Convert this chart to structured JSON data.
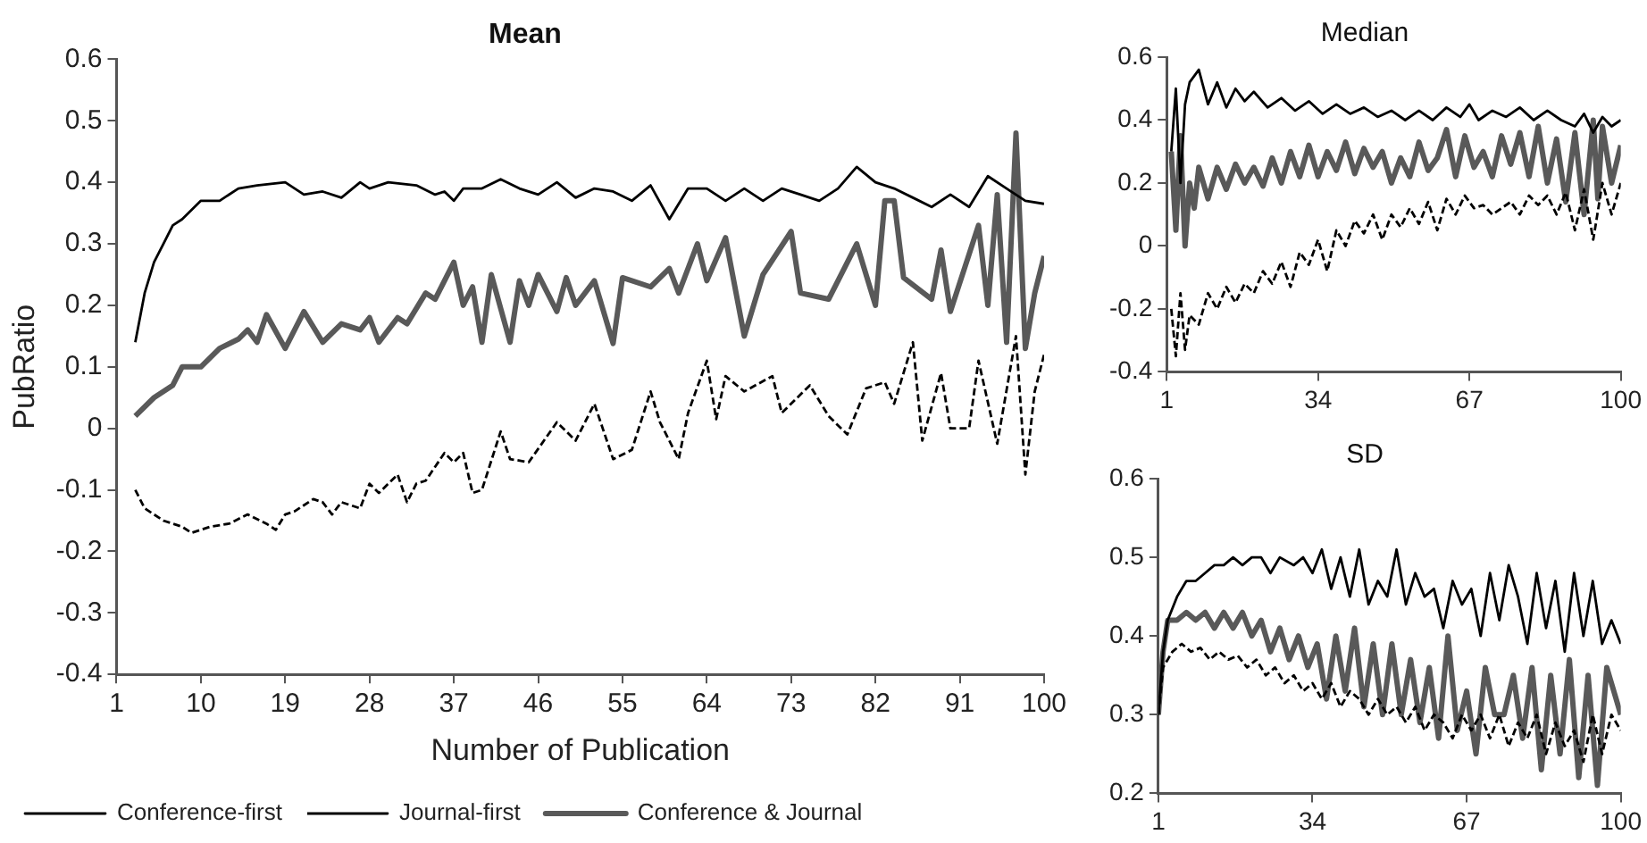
{
  "chart_data": [
    {
      "type": "line",
      "title": "Mean",
      "xlabel": "Number of Publication",
      "ylabel": "PubRatio",
      "xlim": [
        1,
        100
      ],
      "xticks": [
        1,
        10,
        19,
        28,
        37,
        46,
        55,
        64,
        73,
        82,
        91,
        100
      ],
      "ylim": [
        -0.4,
        0.6
      ],
      "yticks": [
        -0.4,
        -0.3,
        -0.2,
        -0.1,
        0,
        0.1,
        0.2,
        0.3,
        0.4,
        0.5,
        0.6
      ],
      "legend": "bottom",
      "marker": "none",
      "series": [
        {
          "name": "Conference-first",
          "color": "#000000",
          "line_style": "solid",
          "x": [
            3,
            4,
            5,
            6,
            7,
            8,
            10,
            12,
            14,
            16,
            19,
            21,
            23,
            25,
            27,
            28,
            30,
            33,
            35,
            36,
            37,
            38,
            40,
            42,
            44,
            46,
            48,
            50,
            52,
            54,
            56,
            58,
            60,
            62,
            64,
            66,
            68,
            70,
            72,
            74,
            76,
            78,
            80,
            82,
            84,
            86,
            88,
            90,
            92,
            94,
            96,
            98,
            100
          ],
          "values": [
            0.14,
            0.22,
            0.27,
            0.3,
            0.33,
            0.34,
            0.37,
            0.37,
            0.39,
            0.395,
            0.4,
            0.38,
            0.385,
            0.375,
            0.4,
            0.39,
            0.4,
            0.395,
            0.38,
            0.385,
            0.37,
            0.39,
            0.39,
            0.405,
            0.39,
            0.38,
            0.4,
            0.375,
            0.39,
            0.385,
            0.37,
            0.395,
            0.34,
            0.39,
            0.39,
            0.37,
            0.39,
            0.37,
            0.39,
            0.38,
            0.37,
            0.39,
            0.425,
            0.4,
            0.39,
            0.375,
            0.36,
            0.38,
            0.36,
            0.41,
            0.39,
            0.37,
            0.365
          ]
        },
        {
          "name": "Journal-first",
          "color": "#000000",
          "line_style": "dashed",
          "x": [
            3,
            4,
            6,
            8,
            9,
            11,
            13,
            15,
            17,
            18,
            19,
            20,
            22,
            23,
            24,
            25,
            27,
            28,
            29,
            31,
            32,
            33,
            34,
            36,
            37,
            38,
            39,
            40,
            42,
            43,
            45,
            48,
            50,
            52,
            54,
            56,
            58,
            59,
            61,
            62,
            64,
            65,
            66,
            68,
            71,
            72,
            75,
            77,
            79,
            81,
            83,
            84,
            86,
            87,
            89,
            90,
            92,
            93,
            95,
            97,
            98,
            99,
            100
          ],
          "values": [
            -0.1,
            -0.13,
            -0.15,
            -0.16,
            -0.17,
            -0.16,
            -0.155,
            -0.14,
            -0.155,
            -0.165,
            -0.14,
            -0.135,
            -0.115,
            -0.12,
            -0.14,
            -0.12,
            -0.13,
            -0.09,
            -0.105,
            -0.075,
            -0.12,
            -0.09,
            -0.085,
            -0.04,
            -0.055,
            -0.04,
            -0.105,
            -0.1,
            -0.005,
            -0.05,
            -0.055,
            0.01,
            -0.02,
            0.04,
            -0.05,
            -0.035,
            0.06,
            0.01,
            -0.05,
            0.025,
            0.11,
            0.015,
            0.085,
            0.06,
            0.085,
            0.025,
            0.07,
            0.02,
            -0.01,
            0.065,
            0.075,
            0.04,
            0.14,
            -0.02,
            0.09,
            0,
            0,
            0.11,
            -0.025,
            0.15,
            -0.075,
            0.06,
            0.12
          ]
        },
        {
          "name": "Conference & Journal",
          "color": "#595959",
          "line_style": "solid",
          "x": [
            3,
            5,
            7,
            8,
            10,
            12,
            14,
            15,
            16,
            17,
            19,
            21,
            23,
            25,
            27,
            28,
            29,
            31,
            32,
            34,
            35,
            37,
            38,
            39,
            40,
            41,
            43,
            44,
            45,
            46,
            47,
            48,
            49,
            50,
            52,
            54,
            55,
            58,
            60,
            61,
            63,
            64,
            66,
            68,
            70,
            73,
            74,
            77,
            80,
            82,
            83,
            84,
            85,
            88,
            89,
            90,
            93,
            94,
            95,
            96,
            97,
            98,
            99,
            100
          ],
          "values": [
            0.02,
            0.05,
            0.07,
            0.1,
            0.1,
            0.13,
            0.145,
            0.16,
            0.14,
            0.185,
            0.13,
            0.19,
            0.14,
            0.17,
            0.16,
            0.18,
            0.14,
            0.18,
            0.17,
            0.22,
            0.21,
            0.27,
            0.2,
            0.23,
            0.14,
            0.25,
            0.14,
            0.24,
            0.2,
            0.25,
            0.22,
            0.19,
            0.245,
            0.2,
            0.24,
            0.138,
            0.245,
            0.23,
            0.26,
            0.22,
            0.3,
            0.24,
            0.31,
            0.15,
            0.25,
            0.32,
            0.22,
            0.21,
            0.3,
            0.2,
            0.37,
            0.37,
            0.245,
            0.21,
            0.29,
            0.19,
            0.33,
            0.2,
            0.38,
            0.14,
            0.48,
            0.13,
            0.22,
            0.28
          ]
        }
      ]
    },
    {
      "type": "line",
      "title": "Median",
      "xlim": [
        1,
        100
      ],
      "xticks": [
        1,
        34,
        67,
        100
      ],
      "ylim": [
        -0.4,
        0.6
      ],
      "yticks": [
        -0.4,
        -0.2,
        0,
        0.2,
        0.4,
        0.6
      ],
      "marker": "none",
      "series": [
        {
          "color": "#000000",
          "line_style": "solid",
          "x": [
            2,
            3,
            4,
            5,
            6,
            8,
            10,
            12,
            14,
            16,
            18,
            20,
            23,
            26,
            29,
            32,
            35,
            38,
            41,
            44,
            47,
            50,
            53,
            56,
            59,
            62,
            65,
            67,
            69,
            72,
            75,
            78,
            81,
            84,
            87,
            90,
            92,
            94,
            96,
            98,
            100
          ],
          "values": [
            0.3,
            0.5,
            0.2,
            0.45,
            0.52,
            0.56,
            0.45,
            0.52,
            0.44,
            0.5,
            0.46,
            0.49,
            0.44,
            0.47,
            0.43,
            0.46,
            0.42,
            0.45,
            0.42,
            0.44,
            0.41,
            0.43,
            0.4,
            0.43,
            0.4,
            0.44,
            0.41,
            0.45,
            0.4,
            0.43,
            0.41,
            0.44,
            0.4,
            0.43,
            0.4,
            0.38,
            0.42,
            0.36,
            0.41,
            0.38,
            0.4
          ]
        },
        {
          "color": "#000000",
          "line_style": "dashed",
          "x": [
            2,
            3,
            4,
            5,
            6,
            8,
            10,
            12,
            14,
            16,
            18,
            20,
            22,
            24,
            26,
            28,
            30,
            32,
            34,
            36,
            38,
            40,
            42,
            44,
            46,
            48,
            50,
            52,
            54,
            56,
            58,
            60,
            62,
            64,
            66,
            68,
            70,
            72,
            74,
            76,
            78,
            80,
            82,
            84,
            86,
            88,
            90,
            92,
            94,
            96,
            98,
            100
          ],
          "values": [
            -0.2,
            -0.35,
            -0.15,
            -0.33,
            -0.22,
            -0.25,
            -0.15,
            -0.2,
            -0.13,
            -0.18,
            -0.12,
            -0.15,
            -0.08,
            -0.12,
            -0.05,
            -0.13,
            -0.02,
            -0.06,
            0.02,
            -0.08,
            0.05,
            0,
            0.08,
            0.04,
            0.1,
            0.02,
            0.1,
            0.06,
            0.12,
            0.07,
            0.14,
            0.05,
            0.15,
            0.1,
            0.16,
            0.12,
            0.13,
            0.1,
            0.12,
            0.14,
            0.1,
            0.16,
            0.13,
            0.16,
            0.1,
            0.17,
            0.05,
            0.18,
            0.02,
            0.2,
            0.1,
            0.2
          ]
        },
        {
          "color": "#595959",
          "line_style": "solid",
          "x": [
            2,
            3,
            4,
            5,
            6,
            7,
            8,
            10,
            12,
            14,
            16,
            18,
            20,
            22,
            24,
            26,
            28,
            30,
            32,
            34,
            36,
            38,
            40,
            42,
            44,
            46,
            48,
            50,
            52,
            54,
            56,
            58,
            60,
            62,
            64,
            66,
            68,
            70,
            72,
            74,
            76,
            78,
            80,
            82,
            84,
            86,
            88,
            90,
            92,
            94,
            95,
            96,
            98,
            100
          ],
          "values": [
            0.3,
            0.05,
            0.35,
            0,
            0.2,
            0.12,
            0.25,
            0.15,
            0.25,
            0.18,
            0.26,
            0.2,
            0.25,
            0.19,
            0.28,
            0.2,
            0.3,
            0.22,
            0.32,
            0.22,
            0.3,
            0.24,
            0.33,
            0.23,
            0.31,
            0.25,
            0.3,
            0.2,
            0.28,
            0.22,
            0.33,
            0.24,
            0.28,
            0.37,
            0.22,
            0.35,
            0.25,
            0.3,
            0.22,
            0.35,
            0.26,
            0.36,
            0.22,
            0.38,
            0.2,
            0.34,
            0.14,
            0.36,
            0.1,
            0.4,
            0.15,
            0.38,
            0.2,
            0.32
          ]
        }
      ]
    },
    {
      "type": "line",
      "title": "SD",
      "xlim": [
        1,
        100
      ],
      "xticks": [
        1,
        34,
        67,
        100
      ],
      "ylim": [
        0.2,
        0.6
      ],
      "yticks": [
        0.2,
        0.3,
        0.4,
        0.5,
        0.6
      ],
      "marker": "none",
      "series": [
        {
          "color": "#000000",
          "line_style": "solid",
          "x": [
            1,
            2,
            3,
            5,
            7,
            9,
            11,
            13,
            15,
            17,
            19,
            21,
            23,
            25,
            27,
            30,
            32,
            34,
            36,
            38,
            40,
            42,
            44,
            46,
            48,
            50,
            52,
            54,
            56,
            58,
            60,
            62,
            64,
            66,
            68,
            70,
            72,
            74,
            76,
            78,
            80,
            82,
            84,
            86,
            88,
            90,
            92,
            94,
            96,
            98,
            100
          ],
          "values": [
            0.3,
            0.38,
            0.42,
            0.45,
            0.47,
            0.47,
            0.48,
            0.49,
            0.49,
            0.5,
            0.49,
            0.5,
            0.5,
            0.48,
            0.5,
            0.49,
            0.5,
            0.48,
            0.51,
            0.46,
            0.5,
            0.45,
            0.51,
            0.44,
            0.47,
            0.45,
            0.51,
            0.44,
            0.48,
            0.45,
            0.46,
            0.41,
            0.47,
            0.44,
            0.46,
            0.4,
            0.48,
            0.42,
            0.49,
            0.45,
            0.39,
            0.48,
            0.41,
            0.47,
            0.38,
            0.48,
            0.4,
            0.47,
            0.39,
            0.42,
            0.39
          ]
        },
        {
          "color": "#000000",
          "line_style": "dashed",
          "x": [
            1,
            2,
            4,
            6,
            8,
            10,
            12,
            14,
            16,
            18,
            20,
            22,
            24,
            26,
            28,
            30,
            32,
            34,
            36,
            38,
            40,
            42,
            44,
            46,
            48,
            50,
            52,
            54,
            56,
            58,
            60,
            62,
            64,
            66,
            68,
            70,
            72,
            74,
            76,
            78,
            80,
            82,
            84,
            86,
            88,
            90,
            92,
            94,
            96,
            98,
            100
          ],
          "values": [
            0.3,
            0.36,
            0.38,
            0.39,
            0.38,
            0.385,
            0.37,
            0.38,
            0.37,
            0.375,
            0.36,
            0.37,
            0.35,
            0.36,
            0.34,
            0.35,
            0.33,
            0.34,
            0.32,
            0.34,
            0.31,
            0.33,
            0.32,
            0.3,
            0.32,
            0.3,
            0.31,
            0.29,
            0.31,
            0.28,
            0.3,
            0.29,
            0.27,
            0.3,
            0.28,
            0.3,
            0.27,
            0.3,
            0.26,
            0.29,
            0.27,
            0.3,
            0.25,
            0.29,
            0.26,
            0.28,
            0.24,
            0.3,
            0.25,
            0.3,
            0.28
          ]
        },
        {
          "color": "#595959",
          "line_style": "solid",
          "x": [
            1,
            2,
            3,
            5,
            7,
            9,
            11,
            13,
            15,
            17,
            19,
            21,
            23,
            25,
            27,
            29,
            31,
            33,
            35,
            37,
            39,
            41,
            43,
            45,
            47,
            49,
            51,
            53,
            55,
            57,
            59,
            61,
            63,
            65,
            67,
            69,
            71,
            73,
            75,
            77,
            79,
            81,
            83,
            85,
            87,
            89,
            91,
            93,
            95,
            97,
            99,
            100
          ],
          "values": [
            0.3,
            0.38,
            0.42,
            0.42,
            0.43,
            0.42,
            0.43,
            0.41,
            0.43,
            0.41,
            0.43,
            0.4,
            0.42,
            0.38,
            0.41,
            0.37,
            0.4,
            0.36,
            0.39,
            0.32,
            0.4,
            0.33,
            0.41,
            0.31,
            0.39,
            0.3,
            0.39,
            0.3,
            0.37,
            0.29,
            0.36,
            0.27,
            0.4,
            0.28,
            0.33,
            0.25,
            0.36,
            0.3,
            0.3,
            0.35,
            0.27,
            0.36,
            0.23,
            0.35,
            0.25,
            0.37,
            0.22,
            0.35,
            0.21,
            0.36,
            0.32,
            0.3
          ]
        }
      ]
    }
  ]
}
